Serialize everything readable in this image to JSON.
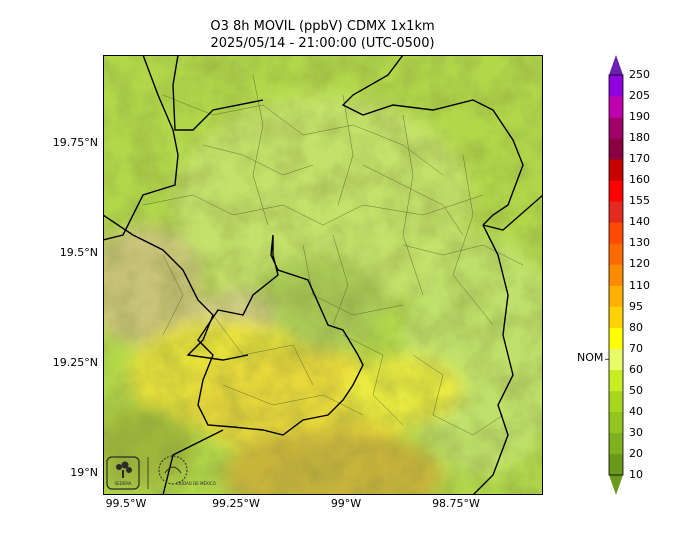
{
  "title": {
    "line1": "O3 8h MOVIL (ppbV) CDMX 1x1km",
    "line2": "2025/05/14 - 21:00:00 (UTC-0500)"
  },
  "axes": {
    "lat_labels": [
      "19.75°N",
      "19.5°N",
      "19.25°N",
      "19°N"
    ],
    "lon_labels": [
      "99.5°W",
      "99.25°W",
      "99°W",
      "98.75°W"
    ]
  },
  "colorbar": {
    "levels": [
      "10",
      "20",
      "30",
      "40",
      "50",
      "60",
      "70",
      "80",
      "95",
      "110",
      "120",
      "130",
      "140",
      "155",
      "160",
      "170",
      "180",
      "190",
      "205",
      "250"
    ],
    "colors": [
      "#6b9a1a",
      "#7fb01e",
      "#93c420",
      "#a8d81e",
      "#c6ee22",
      "#e8fb6a",
      "#ffff00",
      "#ffd200",
      "#ffb000",
      "#ff8c00",
      "#ff6a00",
      "#ff4a00",
      "#e32a20",
      "#ff0000",
      "#c80000",
      "#8b0040",
      "#a0006a",
      "#c000b0",
      "#9000e0",
      "#6a20b0"
    ],
    "marker_label": "NOM",
    "marker_value": 65
  },
  "logos": {
    "sedema": "SEDEMA",
    "cdmx": "CIUDAD DE MÉXICO"
  }
}
